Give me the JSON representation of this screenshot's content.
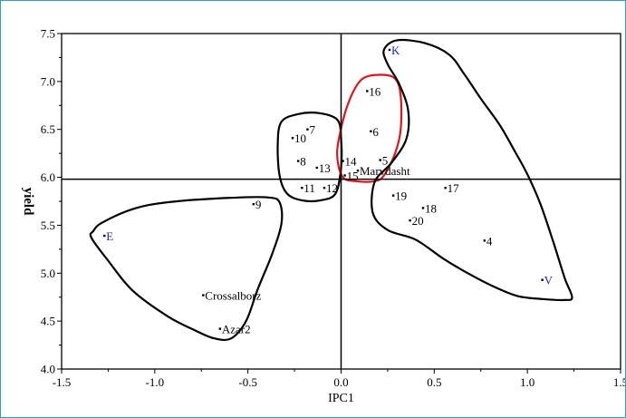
{
  "chart_data": {
    "type": "scatter",
    "title": "",
    "xlabel": "IPC1",
    "ylabel": "yield",
    "xlim": [
      -1.5,
      1.5
    ],
    "ylim": [
      4.0,
      7.5
    ],
    "xticks": [
      -1.5,
      -1.0,
      -0.5,
      0.0,
      0.5,
      1.0,
      1.5
    ],
    "yticks": [
      4.0,
      4.5,
      5.0,
      5.5,
      6.0,
      6.5,
      7.0,
      7.5
    ],
    "xtick_labels": [
      "-1.5",
      "-1.0",
      "-0.5",
      "0.0",
      "0.5",
      "1.0",
      "1.5"
    ],
    "ytick_labels": [
      "4.0",
      "4.5",
      "5.0",
      "5.5",
      "6.0",
      "6.5",
      "7.0",
      "7.5"
    ],
    "reference_lines": {
      "x": 0.0,
      "y": 5.98
    },
    "grid": false,
    "label_color": "#000000",
    "env_label_color": "#1f1fd0",
    "points": [
      {
        "label": "K",
        "x": 0.26,
        "y": 7.33,
        "kind": "environment"
      },
      {
        "label": "E",
        "x": -1.27,
        "y": 5.39,
        "kind": "environment"
      },
      {
        "label": "V",
        "x": 1.08,
        "y": 4.93,
        "kind": "environment"
      },
      {
        "label": "16",
        "x": 0.14,
        "y": 6.9,
        "kind": "genotype"
      },
      {
        "label": "6",
        "x": 0.16,
        "y": 6.48,
        "kind": "genotype"
      },
      {
        "label": "7",
        "x": -0.18,
        "y": 6.5,
        "kind": "genotype"
      },
      {
        "label": "10",
        "x": -0.26,
        "y": 6.41,
        "kind": "genotype"
      },
      {
        "label": "5",
        "x": 0.21,
        "y": 6.18,
        "kind": "genotype"
      },
      {
        "label": "14",
        "x": 0.01,
        "y": 6.17,
        "kind": "genotype"
      },
      {
        "label": "8",
        "x": -0.23,
        "y": 6.17,
        "kind": "genotype"
      },
      {
        "label": "13",
        "x": -0.13,
        "y": 6.1,
        "kind": "genotype"
      },
      {
        "label": "15",
        "x": 0.02,
        "y": 6.02,
        "kind": "genotype"
      },
      {
        "label": "Marvdasht",
        "x": 0.09,
        "y": 6.07,
        "kind": "genotype"
      },
      {
        "label": "11",
        "x": -0.21,
        "y": 5.89,
        "kind": "genotype"
      },
      {
        "label": "12",
        "x": -0.09,
        "y": 5.89,
        "kind": "genotype"
      },
      {
        "label": "17",
        "x": 0.56,
        "y": 5.89,
        "kind": "genotype"
      },
      {
        "label": "19",
        "x": 0.28,
        "y": 5.81,
        "kind": "genotype"
      },
      {
        "label": "18",
        "x": 0.44,
        "y": 5.68,
        "kind": "genotype"
      },
      {
        "label": "20",
        "x": 0.37,
        "y": 5.55,
        "kind": "genotype"
      },
      {
        "label": "4",
        "x": 0.77,
        "y": 5.34,
        "kind": "genotype"
      },
      {
        "label": "9",
        "x": -0.47,
        "y": 5.72,
        "kind": "genotype"
      },
      {
        "label": "Crossalborz",
        "x": -0.74,
        "y": 4.77,
        "kind": "genotype"
      },
      {
        "label": "Azar2",
        "x": -0.65,
        "y": 4.42,
        "kind": "genotype"
      }
    ],
    "clusters": [
      {
        "color": "#000000",
        "outline": [
          [
            -1.33,
            5.44
          ],
          [
            -1.28,
            5.53
          ],
          [
            -1.1,
            5.68
          ],
          [
            -0.88,
            5.75
          ],
          [
            -0.55,
            5.79
          ],
          [
            -0.39,
            5.79
          ],
          [
            -0.33,
            5.74
          ],
          [
            -0.32,
            5.52
          ],
          [
            -0.37,
            5.2
          ],
          [
            -0.45,
            4.82
          ],
          [
            -0.51,
            4.5
          ],
          [
            -0.59,
            4.32
          ],
          [
            -0.68,
            4.32
          ],
          [
            -0.78,
            4.4
          ],
          [
            -0.93,
            4.55
          ],
          [
            -1.12,
            4.82
          ],
          [
            -1.25,
            5.13
          ],
          [
            -1.34,
            5.37
          ]
        ]
      },
      {
        "color": "#000000",
        "outline": [
          [
            -0.32,
            6.58
          ],
          [
            -0.23,
            6.66
          ],
          [
            -0.12,
            6.67
          ],
          [
            -0.02,
            6.6
          ],
          [
            0.0,
            6.4
          ],
          [
            0.0,
            6.1
          ],
          [
            -0.03,
            5.83
          ],
          [
            -0.11,
            5.76
          ],
          [
            -0.21,
            5.76
          ],
          [
            -0.29,
            5.83
          ],
          [
            -0.33,
            6.02
          ],
          [
            -0.34,
            6.35
          ]
        ]
      },
      {
        "color": "#e0141b",
        "outline": [
          [
            -0.01,
            6.42
          ],
          [
            0.04,
            6.78
          ],
          [
            0.11,
            7.02
          ],
          [
            0.21,
            7.07
          ],
          [
            0.29,
            7.03
          ],
          [
            0.32,
            6.85
          ],
          [
            0.32,
            6.5
          ],
          [
            0.29,
            6.25
          ],
          [
            0.23,
            6.02
          ],
          [
            0.18,
            5.96
          ],
          [
            0.08,
            5.96
          ],
          [
            0.01,
            6.0
          ],
          [
            -0.02,
            6.2
          ]
        ]
      },
      {
        "color": "#000000",
        "outline": [
          [
            0.23,
            7.33
          ],
          [
            0.3,
            7.43
          ],
          [
            0.45,
            7.4
          ],
          [
            0.58,
            7.28
          ],
          [
            0.66,
            7.08
          ],
          [
            0.75,
            6.82
          ],
          [
            0.85,
            6.55
          ],
          [
            0.93,
            6.28
          ],
          [
            1.0,
            6.03
          ],
          [
            1.07,
            5.72
          ],
          [
            1.14,
            5.32
          ],
          [
            1.2,
            4.95
          ],
          [
            1.24,
            4.75
          ],
          [
            1.2,
            4.72
          ],
          [
            1.08,
            4.73
          ],
          [
            0.95,
            4.76
          ],
          [
            0.82,
            4.86
          ],
          [
            0.68,
            5.0
          ],
          [
            0.55,
            5.15
          ],
          [
            0.4,
            5.35
          ],
          [
            0.25,
            5.45
          ],
          [
            0.17,
            5.63
          ],
          [
            0.18,
            5.95
          ],
          [
            0.27,
            6.15
          ],
          [
            0.35,
            6.4
          ],
          [
            0.36,
            6.7
          ],
          [
            0.31,
            6.98
          ],
          [
            0.25,
            7.18
          ]
        ]
      }
    ]
  }
}
